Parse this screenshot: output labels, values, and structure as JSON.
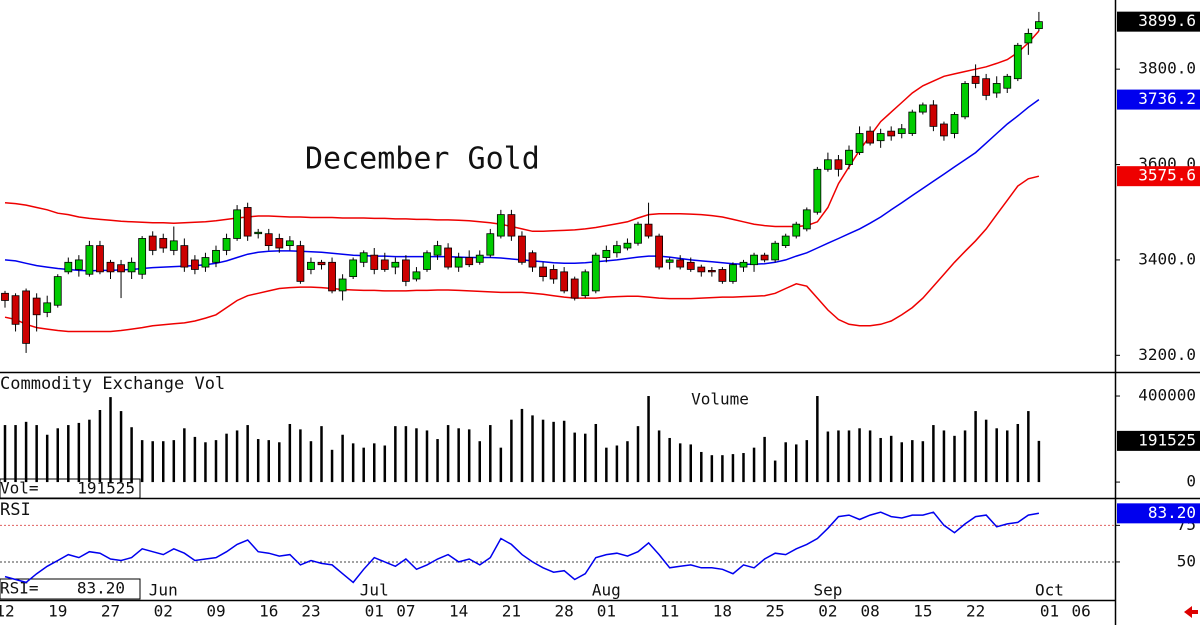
{
  "chart_data": [
    {
      "type": "candlestick",
      "title": "December Gold",
      "categories": [
        "12",
        null,
        null,
        null,
        null,
        "19",
        null,
        null,
        null,
        null,
        "27",
        null,
        null,
        null,
        null,
        "02",
        null,
        null,
        null,
        null,
        "09",
        null,
        null,
        null,
        null,
        "16",
        null,
        null,
        null,
        "23",
        null,
        null,
        null,
        null,
        null,
        "01",
        null,
        null,
        "07",
        null,
        null,
        null,
        null,
        "14",
        null,
        null,
        null,
        null,
        "21",
        null,
        null,
        null,
        null,
        "28",
        null,
        null,
        null,
        "01",
        null,
        null,
        null,
        null,
        null,
        "11",
        null,
        null,
        null,
        null,
        "18",
        null,
        null,
        null,
        null,
        "25",
        null,
        null,
        null,
        null,
        "02",
        null,
        null,
        null,
        "08",
        null,
        null,
        null,
        null,
        "15",
        null,
        null,
        null,
        null,
        "22",
        null,
        null,
        null,
        null,
        null,
        null,
        "01",
        null,
        null,
        "06"
      ],
      "month_labels": [
        {
          "value": 15,
          "label": "Jun"
        },
        {
          "value": 35,
          "label": "Jul"
        },
        {
          "value": 57,
          "label": "Aug"
        },
        {
          "value": 78,
          "label": "Sep"
        },
        {
          "value": 99,
          "label": "Oct"
        }
      ],
      "open": [
        3330,
        3325,
        3335,
        3320,
        3290,
        3305,
        3375,
        3380,
        3370,
        3430,
        3395,
        3390,
        3375,
        3370,
        3450,
        3445,
        3420,
        3430,
        3400,
        3385,
        3395,
        3420,
        3445,
        3510,
        3455,
        3455,
        3445,
        3430,
        3430,
        3380,
        3395,
        3395,
        3335,
        3365,
        3395,
        3410,
        3400,
        3385,
        3400,
        3360,
        3380,
        3410,
        3425,
        3385,
        3405,
        3395,
        3410,
        3450,
        3495,
        3450,
        3415,
        3385,
        3380,
        3375,
        3360,
        3325,
        3335,
        3405,
        3415,
        3425,
        3435,
        3475,
        3450,
        3395,
        3400,
        3395,
        3385,
        3378,
        3380,
        3355,
        3385,
        3390,
        3410,
        3400,
        3430,
        3450,
        3465,
        3500,
        3590,
        3610,
        3600,
        3625,
        3670,
        3650,
        3670,
        3665,
        3665,
        3710,
        3725,
        3685,
        3665,
        3700,
        3785,
        3780,
        3750,
        3760,
        3780,
        3855,
        3885,
        null,
        null,
        null,
        null
      ],
      "high": [
        3335,
        3330,
        3340,
        3330,
        3325,
        3370,
        3405,
        3410,
        3440,
        3440,
        3400,
        3400,
        3405,
        3450,
        3460,
        3455,
        3470,
        3445,
        3410,
        3415,
        3430,
        3455,
        3515,
        3520,
        3465,
        3465,
        3455,
        3450,
        3440,
        3405,
        3400,
        3405,
        3370,
        3405,
        3420,
        3425,
        3415,
        3405,
        3410,
        3385,
        3420,
        3440,
        3435,
        3415,
        3420,
        3420,
        3465,
        3505,
        3505,
        3460,
        3420,
        3395,
        3390,
        3385,
        3365,
        3380,
        3415,
        3430,
        3440,
        3445,
        3480,
        3520,
        3455,
        3405,
        3410,
        3405,
        3390,
        3385,
        3385,
        3395,
        3400,
        3415,
        3415,
        3440,
        3455,
        3480,
        3510,
        3595,
        3625,
        3620,
        3640,
        3680,
        3680,
        3675,
        3680,
        3685,
        3715,
        3730,
        3735,
        3690,
        3710,
        3775,
        3810,
        3790,
        3785,
        3790,
        3855,
        3885,
        3920,
        null,
        null,
        null,
        null
      ],
      "low": [
        3300,
        3250,
        3205,
        3250,
        3280,
        3300,
        3370,
        3365,
        3365,
        3370,
        3360,
        3320,
        3360,
        3360,
        3410,
        3415,
        3410,
        3375,
        3370,
        3375,
        3385,
        3410,
        3440,
        3440,
        3445,
        3420,
        3415,
        3420,
        3350,
        3370,
        3380,
        3330,
        3315,
        3360,
        3385,
        3370,
        3375,
        3370,
        3345,
        3355,
        3375,
        3400,
        3380,
        3375,
        3385,
        3390,
        3405,
        3445,
        3440,
        3390,
        3375,
        3355,
        3350,
        3330,
        3315,
        3320,
        3330,
        3395,
        3405,
        3420,
        3430,
        3445,
        3380,
        3380,
        3380,
        3375,
        3365,
        3365,
        3350,
        3350,
        3375,
        3375,
        3395,
        3395,
        3425,
        3445,
        3460,
        3495,
        3585,
        3575,
        3590,
        3620,
        3640,
        3635,
        3650,
        3655,
        3660,
        3705,
        3670,
        3650,
        3655,
        3695,
        3760,
        3735,
        3740,
        3750,
        3775,
        3830,
        3880,
        null,
        null,
        null,
        null
      ],
      "close": [
        3315,
        3265,
        3225,
        3285,
        3310,
        3365,
        3395,
        3400,
        3430,
        3375,
        3375,
        3375,
        3395,
        3445,
        3420,
        3425,
        3440,
        3385,
        3380,
        3405,
        3420,
        3445,
        3505,
        3450,
        3458,
        3430,
        3425,
        3440,
        3355,
        3395,
        3390,
        3335,
        3360,
        3400,
        3415,
        3380,
        3380,
        3395,
        3355,
        3375,
        3415,
        3430,
        3385,
        3405,
        3390,
        3410,
        3455,
        3495,
        3450,
        3395,
        3385,
        3365,
        3360,
        3335,
        3320,
        3375,
        3410,
        3420,
        3430,
        3435,
        3475,
        3450,
        3385,
        3400,
        3385,
        3380,
        3375,
        3375,
        3355,
        3390,
        3395,
        3410,
        3400,
        3435,
        3450,
        3475,
        3505,
        3590,
        3610,
        3590,
        3630,
        3665,
        3645,
        3665,
        3660,
        3675,
        3710,
        3725,
        3680,
        3660,
        3705,
        3770,
        3770,
        3745,
        3770,
        3785,
        3850,
        3875,
        3899.6,
        null,
        null,
        null,
        null
      ],
      "up_color": "#00cc00",
      "down_color": "#cc0000",
      "last_color": "#000000",
      "bands": [
        {
          "color": "#ee0000",
          "values": [
            3520,
            3518,
            3515,
            3510,
            3505,
            3498,
            3495,
            3490,
            3487,
            3485,
            3483,
            3481,
            3480,
            3479,
            3478,
            3478,
            3477,
            3478,
            3479,
            3480,
            3482,
            3485,
            3488,
            3490,
            3492,
            3492,
            3491,
            3490,
            3490,
            3489,
            3489,
            3489,
            3488,
            3488,
            3488,
            3487,
            3487,
            3486,
            3486,
            3485,
            3485,
            3484,
            3484,
            3483,
            3482,
            3480,
            3478,
            3475,
            3470,
            3465,
            3460,
            3460,
            3461,
            3462,
            3463,
            3465,
            3468,
            3472,
            3476,
            3480,
            3488,
            3495,
            3497,
            3497,
            3497,
            3496,
            3495,
            3493,
            3490,
            3485,
            3480,
            3475,
            3472,
            3470,
            3470,
            3470,
            3472,
            3480,
            3510,
            3560,
            3595,
            3630,
            3660,
            3690,
            3710,
            3730,
            3750,
            3765,
            3775,
            3785,
            3790,
            3795,
            3800,
            3805,
            3812,
            3820,
            3835,
            3855,
            3880,
            null,
            null,
            null,
            null
          ]
        },
        {
          "color": "#0000ee",
          "values": [
            3400,
            3398,
            3393,
            3388,
            3385,
            3382,
            3380,
            3378,
            3377,
            3378,
            3378,
            3379,
            3380,
            3382,
            3384,
            3385,
            3386,
            3387,
            3388,
            3390,
            3393,
            3398,
            3405,
            3412,
            3416,
            3418,
            3419,
            3419,
            3418,
            3417,
            3416,
            3414,
            3412,
            3410,
            3409,
            3408,
            3408,
            3407,
            3407,
            3407,
            3407,
            3407,
            3407,
            3406,
            3405,
            3405,
            3405,
            3404,
            3402,
            3400,
            3398,
            3396,
            3394,
            3393,
            3393,
            3394,
            3396,
            3398,
            3400,
            3403,
            3406,
            3408,
            3408,
            3406,
            3403,
            3400,
            3398,
            3396,
            3394,
            3392,
            3391,
            3391,
            3392,
            3395,
            3400,
            3408,
            3415,
            3425,
            3435,
            3445,
            3455,
            3465,
            3477,
            3490,
            3505,
            3520,
            3535,
            3550,
            3565,
            3580,
            3595,
            3610,
            3625,
            3645,
            3665,
            3685,
            3702,
            3720,
            3736.2,
            null,
            null,
            null,
            null
          ]
        },
        {
          "color": "#ee0000",
          "values": [
            3280,
            3275,
            3265,
            3258,
            3255,
            3252,
            3250,
            3250,
            3250,
            3250,
            3250,
            3252,
            3255,
            3258,
            3262,
            3264,
            3266,
            3268,
            3272,
            3278,
            3285,
            3300,
            3315,
            3325,
            3330,
            3335,
            3340,
            3342,
            3343,
            3343,
            3342,
            3340,
            3338,
            3337,
            3336,
            3336,
            3335,
            3335,
            3335,
            3336,
            3336,
            3337,
            3337,
            3336,
            3335,
            3334,
            3333,
            3332,
            3332,
            3332,
            3330,
            3328,
            3325,
            3322,
            3320,
            3320,
            3320,
            3322,
            3323,
            3324,
            3324,
            3322,
            3320,
            3319,
            3319,
            3319,
            3320,
            3321,
            3322,
            3322,
            3323,
            3324,
            3325,
            3330,
            3340,
            3350,
            3345,
            3320,
            3295,
            3275,
            3265,
            3262,
            3262,
            3265,
            3272,
            3285,
            3300,
            3320,
            3345,
            3370,
            3395,
            3418,
            3440,
            3465,
            3495,
            3525,
            3555,
            3570,
            3575.6,
            null,
            null,
            null,
            null
          ]
        }
      ],
      "ylim": [
        3165,
        3945
      ],
      "yticks": [
        {
          "value": 3200,
          "label": "3200.0"
        },
        {
          "value": 3400,
          "label": "3400.0"
        },
        {
          "value": 3600,
          "label": "3600.0"
        },
        {
          "value": 3800,
          "label": "3800.0"
        }
      ],
      "grid": false
    },
    {
      "type": "bar",
      "title": "Commodity Exchange Vol",
      "label": "Volume",
      "readout_label": "Vol=",
      "color": "#000000",
      "values": [
        265000,
        265000,
        280000,
        265000,
        220000,
        250000,
        265000,
        275000,
        290000,
        335000,
        395000,
        330000,
        255000,
        195000,
        190000,
        190000,
        195000,
        250000,
        210000,
        185000,
        195000,
        225000,
        240000,
        265000,
        200000,
        195000,
        185000,
        270000,
        245000,
        190000,
        260000,
        150000,
        220000,
        180000,
        160000,
        180000,
        170000,
        260000,
        260000,
        250000,
        240000,
        200000,
        265000,
        250000,
        245000,
        190000,
        265000,
        160000,
        290000,
        340000,
        310000,
        290000,
        280000,
        285000,
        230000,
        225000,
        270000,
        160000,
        170000,
        190000,
        260000,
        400000,
        240000,
        205000,
        180000,
        175000,
        140000,
        125000,
        125000,
        130000,
        135000,
        160000,
        210000,
        100000,
        185000,
        175000,
        195000,
        400000,
        235000,
        240000,
        240000,
        250000,
        240000,
        205000,
        215000,
        185000,
        195000,
        190000,
        265000,
        240000,
        215000,
        240000,
        330000,
        290000,
        250000,
        240000,
        270000,
        330000,
        191525,
        null,
        null,
        null,
        null
      ],
      "ylim": [
        -74000,
        507000
      ],
      "yticks": [
        0,
        400000
      ],
      "grid": false
    },
    {
      "type": "line",
      "title": "RSI",
      "readout_label": "RSI=",
      "readout": {
        "value": 83.2,
        "label": "83.20"
      },
      "color": "#0000ee",
      "values": [
        40,
        38,
        36,
        42,
        47,
        51,
        55,
        53,
        57,
        56,
        52,
        51,
        53,
        59,
        57,
        55,
        59,
        56,
        51,
        52,
        53,
        57,
        62,
        65,
        57,
        56,
        54,
        55,
        48,
        51,
        49,
        48,
        42,
        36,
        45,
        53,
        50,
        47,
        52,
        45,
        48,
        52,
        55,
        50,
        52,
        48,
        53,
        66,
        62,
        55,
        50,
        46,
        43,
        44,
        38,
        42,
        53,
        55,
        56,
        54,
        57,
        63,
        55,
        46,
        47,
        48,
        46,
        46,
        45,
        42,
        48,
        46,
        52,
        56,
        55,
        59,
        62,
        66,
        73,
        81,
        82,
        79,
        82,
        84,
        81,
        80,
        82,
        82,
        84,
        75,
        70,
        76,
        81,
        82,
        74,
        76,
        77,
        82,
        83.2,
        null,
        null,
        null,
        null
      ],
      "ylim": [
        24,
        93
      ],
      "yticks": [
        50,
        75
      ],
      "grid": true,
      "grid_colors": [
        "#444444",
        "#e06060"
      ]
    }
  ]
}
